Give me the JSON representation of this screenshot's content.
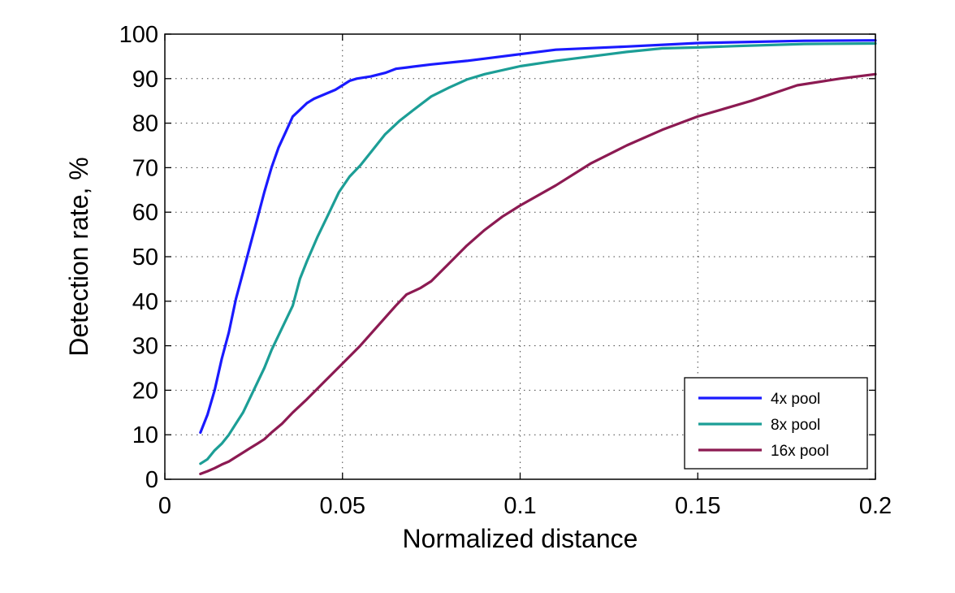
{
  "chart_data": {
    "type": "line",
    "title": "",
    "xlabel": "Normalized distance",
    "ylabel": "Detection rate, %",
    "xlim": [
      0,
      0.2
    ],
    "ylim": [
      0,
      100
    ],
    "xticks": [
      0,
      0.05,
      0.1,
      0.15,
      0.2
    ],
    "xtick_labels": [
      "0",
      "0.05",
      "0.1",
      "0.15",
      "0.2"
    ],
    "yticks": [
      0,
      10,
      20,
      30,
      40,
      50,
      60,
      70,
      80,
      90,
      100
    ],
    "ytick_labels": [
      "0",
      "10",
      "20",
      "30",
      "40",
      "50",
      "60",
      "70",
      "80",
      "90",
      "100"
    ],
    "grid": true,
    "legend_position": "bottom-right",
    "series": [
      {
        "name": "4x pool",
        "color": "#1a1aff",
        "x": [
          0.01,
          0.012,
          0.014,
          0.016,
          0.018,
          0.02,
          0.022,
          0.024,
          0.026,
          0.028,
          0.03,
          0.032,
          0.034,
          0.036,
          0.038,
          0.04,
          0.042,
          0.045,
          0.048,
          0.05,
          0.052,
          0.054,
          0.058,
          0.062,
          0.065,
          0.068,
          0.075,
          0.085,
          0.095,
          0.1,
          0.11,
          0.13,
          0.15,
          0.18,
          0.2
        ],
        "y": [
          10.5,
          14.5,
          20,
          27,
          33,
          40.5,
          46.5,
          52.5,
          58.5,
          64.5,
          70,
          74.5,
          78,
          81.5,
          83,
          84.5,
          85.5,
          86.5,
          87.5,
          88.5,
          89.5,
          90,
          90.5,
          91.3,
          92.2,
          92.5,
          93.2,
          94,
          95,
          95.5,
          96.5,
          97.2,
          98,
          98.5,
          98.6
        ]
      },
      {
        "name": "8x pool",
        "color": "#1c9e96",
        "x": [
          0.01,
          0.012,
          0.014,
          0.016,
          0.018,
          0.02,
          0.022,
          0.025,
          0.028,
          0.03,
          0.033,
          0.036,
          0.038,
          0.04,
          0.043,
          0.046,
          0.049,
          0.052,
          0.055,
          0.058,
          0.062,
          0.066,
          0.07,
          0.075,
          0.08,
          0.085,
          0.09,
          0.1,
          0.11,
          0.12,
          0.13,
          0.14,
          0.15,
          0.16,
          0.18,
          0.2
        ],
        "y": [
          3.5,
          4.5,
          6.5,
          8,
          10,
          12.5,
          15,
          20,
          25,
          29,
          34,
          39,
          45,
          49,
          54.5,
          59.5,
          64.5,
          68,
          70.5,
          73.5,
          77.5,
          80.5,
          83,
          86,
          88,
          89.8,
          91,
          92.8,
          94,
          95,
          96,
          96.8,
          97,
          97.3,
          97.8,
          97.9
        ]
      },
      {
        "name": "16x pool",
        "color": "#8c1a52",
        "x": [
          0.01,
          0.012,
          0.014,
          0.016,
          0.018,
          0.02,
          0.022,
          0.024,
          0.026,
          0.028,
          0.03,
          0.033,
          0.036,
          0.04,
          0.045,
          0.05,
          0.055,
          0.06,
          0.065,
          0.068,
          0.072,
          0.075,
          0.08,
          0.085,
          0.09,
          0.095,
          0.1,
          0.11,
          0.12,
          0.13,
          0.14,
          0.15,
          0.165,
          0.178,
          0.19,
          0.2
        ],
        "y": [
          1.2,
          1.8,
          2.5,
          3.3,
          4,
          5,
          6,
          7,
          8,
          9,
          10.5,
          12.5,
          15,
          18,
          22,
          26,
          30,
          34.5,
          39,
          41.5,
          43,
          44.5,
          48.5,
          52.5,
          56,
          59,
          61.5,
          66,
          71,
          75,
          78.5,
          81.5,
          85,
          88.5,
          90,
          91
        ]
      }
    ]
  }
}
